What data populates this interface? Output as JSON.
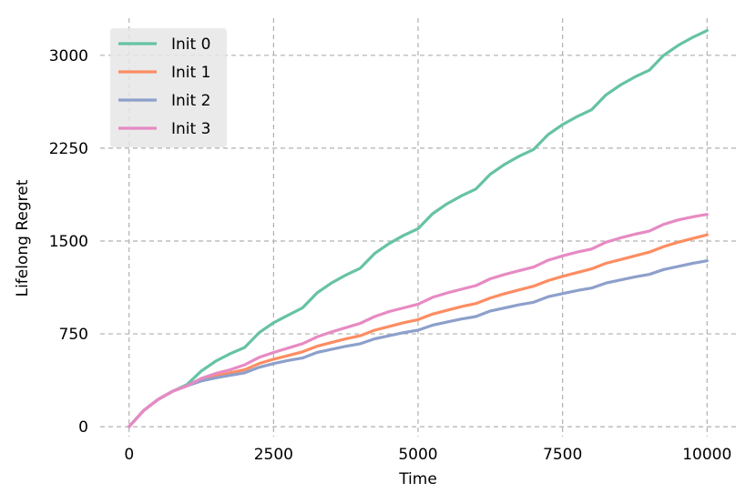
{
  "chart_data": {
    "type": "line",
    "title": "",
    "xlabel": "Time",
    "ylabel": "Lifelong Regret",
    "xlim": [
      -500,
      10500
    ],
    "ylim": [
      -80,
      3300
    ],
    "xticks": [
      0,
      2500,
      5000,
      7500,
      10000
    ],
    "xtick_labels": [
      "0",
      "2500",
      "5000",
      "7500",
      "10000"
    ],
    "yticks": [
      0,
      750,
      1500,
      2250,
      3000
    ],
    "ytick_labels": [
      "0",
      "750",
      "1500",
      "2250",
      "3000"
    ],
    "grid": true,
    "grid_style": "dashed",
    "legend_position": "top-left",
    "series": [
      {
        "name": "Init 0",
        "color": "#66c2a5",
        "x": [
          0,
          250,
          500,
          750,
          1000,
          1250,
          1500,
          1750,
          2000,
          2250,
          2500,
          2750,
          3000,
          3250,
          3500,
          3750,
          4000,
          4250,
          4500,
          4750,
          5000,
          5250,
          5500,
          5750,
          6000,
          6250,
          6500,
          6750,
          7000,
          7250,
          7500,
          7750,
          8000,
          8250,
          8500,
          8750,
          9000,
          9250,
          9500,
          9750,
          10000
        ],
        "y": [
          0,
          130,
          220,
          285,
          340,
          450,
          530,
          590,
          640,
          760,
          840,
          900,
          960,
          1080,
          1160,
          1225,
          1280,
          1400,
          1480,
          1545,
          1600,
          1720,
          1800,
          1865,
          1920,
          2040,
          2120,
          2185,
          2240,
          2360,
          2440,
          2505,
          2560,
          2680,
          2760,
          2825,
          2880,
          3000,
          3080,
          3145,
          3200
        ]
      },
      {
        "name": "Init 1",
        "color": "#fc8d62",
        "x": [
          0,
          250,
          500,
          750,
          1000,
          1250,
          1500,
          1750,
          2000,
          2250,
          2500,
          2750,
          3000,
          3250,
          3500,
          3750,
          4000,
          4250,
          4500,
          4750,
          5000,
          5250,
          5500,
          5750,
          6000,
          6250,
          6500,
          6750,
          7000,
          7250,
          7500,
          7750,
          8000,
          8250,
          8500,
          8750,
          9000,
          9250,
          9500,
          9750,
          10000
        ],
        "y": [
          0,
          130,
          220,
          285,
          330,
          380,
          410,
          435,
          460,
          510,
          545,
          575,
          605,
          650,
          680,
          710,
          735,
          780,
          810,
          840,
          865,
          910,
          940,
          970,
          995,
          1040,
          1075,
          1105,
          1135,
          1180,
          1215,
          1245,
          1275,
          1320,
          1350,
          1380,
          1410,
          1455,
          1490,
          1520,
          1550
        ]
      },
      {
        "name": "Init 2",
        "color": "#8da0cb",
        "x": [
          0,
          250,
          500,
          750,
          1000,
          1250,
          1500,
          1750,
          2000,
          2250,
          2500,
          2750,
          3000,
          3250,
          3500,
          3750,
          4000,
          4250,
          4500,
          4750,
          5000,
          5250,
          5500,
          5750,
          6000,
          6250,
          6500,
          6750,
          7000,
          7250,
          7500,
          7750,
          8000,
          8250,
          8500,
          8750,
          9000,
          9250,
          9500,
          9750,
          10000
        ],
        "y": [
          0,
          130,
          220,
          285,
          330,
          370,
          395,
          415,
          435,
          480,
          510,
          535,
          555,
          600,
          625,
          650,
          670,
          710,
          735,
          760,
          780,
          820,
          845,
          870,
          890,
          935,
          960,
          985,
          1005,
          1050,
          1075,
          1100,
          1120,
          1160,
          1185,
          1210,
          1230,
          1270,
          1295,
          1320,
          1340
        ]
      },
      {
        "name": "Init 3",
        "color": "#e78ac3",
        "x": [
          0,
          250,
          500,
          750,
          1000,
          1250,
          1500,
          1750,
          2000,
          2250,
          2500,
          2750,
          3000,
          3250,
          3500,
          3750,
          4000,
          4250,
          4500,
          4750,
          5000,
          5250,
          5500,
          5750,
          6000,
          6250,
          6500,
          6750,
          7000,
          7250,
          7500,
          7750,
          8000,
          8250,
          8500,
          8750,
          9000,
          9250,
          9500,
          9750,
          10000
        ],
        "y": [
          0,
          130,
          220,
          285,
          330,
          390,
          430,
          460,
          500,
          560,
          600,
          635,
          670,
          725,
          765,
          800,
          835,
          890,
          930,
          960,
          990,
          1045,
          1080,
          1110,
          1140,
          1195,
          1230,
          1260,
          1290,
          1345,
          1380,
          1410,
          1435,
          1490,
          1525,
          1555,
          1580,
          1635,
          1670,
          1695,
          1715
        ]
      }
    ]
  }
}
